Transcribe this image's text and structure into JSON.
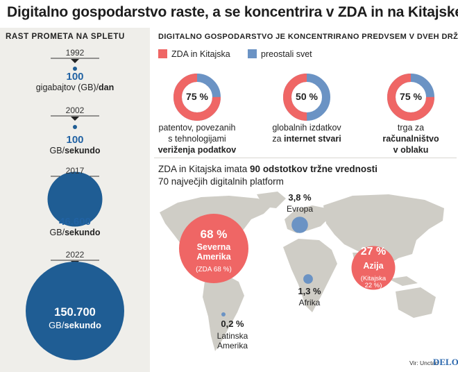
{
  "title": "Digitalno gospodarstvo raste, a se koncentrira v ZDA in na Kitajskem",
  "left_header": "Rast prometa na spletu",
  "right_header": "Digitalno gospodarstvo je koncentrirano predvsem v dveh državah",
  "traffic": [
    {
      "year": "1992",
      "value": "100",
      "unit_pre": "gigabajtov (GB)/",
      "unit_bold": "dan",
      "gb_per_second": 0.0011574
    },
    {
      "year": "2002",
      "value": "100",
      "unit_pre": "GB/",
      "unit_bold": "sekundo",
      "gb_per_second": 100
    },
    {
      "year": "2017",
      "value": "46.600",
      "unit_pre": "GB/",
      "unit_bold": "sekundo",
      "gb_per_second": 46600
    },
    {
      "year": "2022",
      "value": "150.700",
      "unit_pre": "GB/",
      "unit_bold": "sekundo",
      "gb_per_second": 150700
    }
  ],
  "legend": [
    {
      "label": "ZDA in Kitajska",
      "color": "#ef6665"
    },
    {
      "label": "preostali svet",
      "color": "#6b93c4"
    }
  ],
  "donuts": [
    {
      "pct_label": "75 %",
      "share": 75,
      "line1": "patentov, povezanih",
      "line2": "s tehnologijami",
      "line3_bold": "veriženja podatkov",
      "line3_pre": "",
      "line2_bold": ""
    },
    {
      "pct_label": "50 %",
      "share": 50,
      "line1": "globalnih izdatkov",
      "line2": "",
      "line3_pre": "za ",
      "line3_bold": "internet stvari",
      "line2_bold": ""
    },
    {
      "pct_label": "75 %",
      "share": 75,
      "line1": "trga za",
      "line2": "",
      "line2_bold": "računalništvo",
      "line3_pre": "",
      "line3_bold": "v oblaku"
    }
  ],
  "sub_heading": {
    "pre": "ZDA in Kitajska imata ",
    "bold": "90 odstotkov tržne vrednosti",
    "line2": "70 največjih digitalnih platform"
  },
  "regions": [
    {
      "pct_label": "68 %",
      "pct": 68,
      "name": "Severna Amerika",
      "name1": "Severna",
      "name2": "Amerika",
      "note": "(ZDA 68 %)"
    },
    {
      "pct_label": "27 %",
      "pct": 27,
      "name": "Azija",
      "note1": "(Kitajska",
      "note2": "22 %)"
    },
    {
      "pct_label": "3,8 %",
      "pct": 3.8,
      "name": "Evropa"
    },
    {
      "pct_label": "1,3 %",
      "pct": 1.3,
      "name": "Afrika"
    },
    {
      "pct_label": "0,2 %",
      "pct": 0.2,
      "name1": "Latinska",
      "name2": "Amerika"
    }
  ],
  "colors": {
    "accent_red": "#ef6665",
    "accent_blue": "#6b93c4",
    "dark_blue": "#1f5d94",
    "value_blue": "#2162a3",
    "map_land": "#cfcdc6"
  },
  "source": "Vir: Unctad",
  "logo": "DELO",
  "chart_data": [
    {
      "type": "bubble",
      "title": "Rast prometa na spletu",
      "categories": [
        "1992",
        "2002",
        "2017",
        "2022"
      ],
      "labels": [
        "100 gigabajtov (GB)/dan",
        "100 GB/sekundo",
        "46.600 GB/sekundo",
        "150.700 GB/sekundo"
      ],
      "values": [
        0.0011574,
        100,
        46600,
        150700
      ],
      "unit": "GB/sekundo"
    },
    {
      "type": "pie",
      "title": "Digitalno gospodarstvo je koncentrirano predvsem v dveh državah",
      "series": [
        {
          "name": "patentov, povezanih s tehnologijami veriženja podatkov",
          "values": [
            75,
            25
          ]
        },
        {
          "name": "globalnih izdatkov za internet stvari",
          "values": [
            50,
            50
          ]
        },
        {
          "name": "trga za računalništvo v oblaku",
          "values": [
            75,
            25
          ]
        }
      ],
      "categories": [
        "ZDA in Kitajska",
        "preostali svet"
      ]
    },
    {
      "type": "bubble",
      "title": "ZDA in Kitajska imata 90 odstotkov tržne vrednosti 70 največjih digitalnih platform",
      "categories": [
        "Severna Amerika",
        "Azija",
        "Evropa",
        "Afrika",
        "Latinska Amerika"
      ],
      "values": [
        68,
        27,
        3.8,
        1.3,
        0.2
      ],
      "unit": "%"
    }
  ]
}
